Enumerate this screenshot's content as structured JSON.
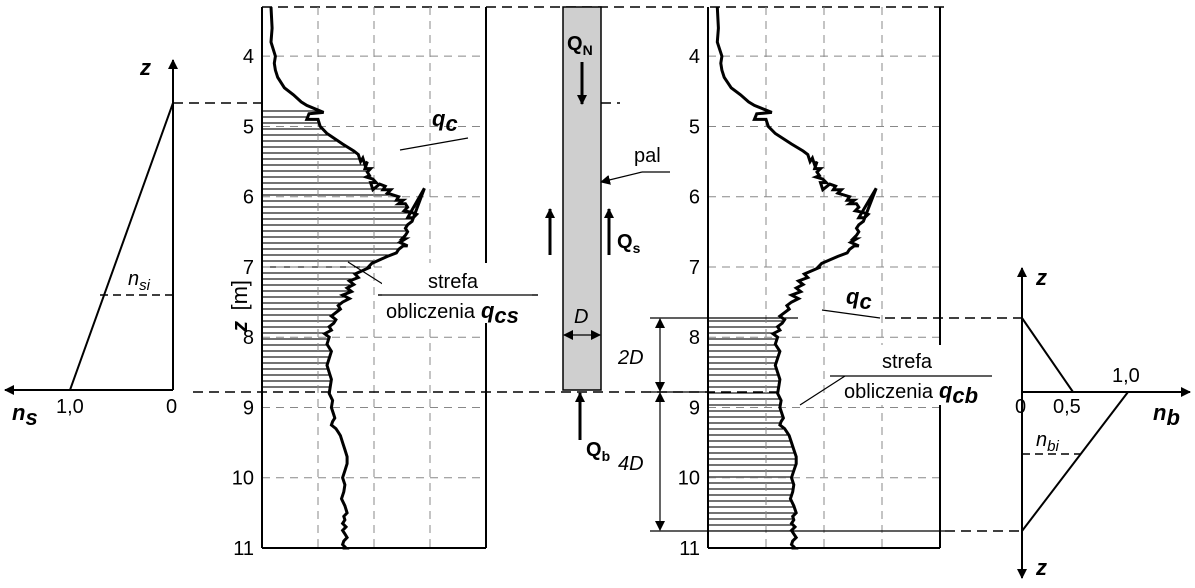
{
  "depth_ticks": [
    "4",
    "5",
    "6",
    "7",
    "8",
    "9",
    "10",
    "11"
  ],
  "depth_axis_label_var": "z",
  "depth_axis_label_unit": "[m]",
  "left_diagram": {
    "axis_z": "z",
    "axis_n": "n",
    "axis_n_sub": "s",
    "tick_one": "1,0",
    "tick_zero": "0",
    "nsi_base": "n",
    "nsi_sub": "si"
  },
  "left_chart": {
    "qc_label_base": "q",
    "qc_label_sub": "c",
    "zone_line1": "strefa",
    "zone_line2": "obliczenia",
    "zone_q_base": "q",
    "zone_q_sub": "cs"
  },
  "pile": {
    "qn_base": "Q",
    "qn_sub": "N",
    "pal_label": "pal",
    "qs_base": "Q",
    "qs_sub": "s",
    "d_label": "D",
    "qb_base": "Q",
    "qb_sub": "b"
  },
  "right_chart": {
    "qc_label_base": "q",
    "qc_label_sub": "c",
    "zone_line1": "strefa",
    "zone_line2": "obliczenia",
    "zone_q_base": "q",
    "zone_q_sub": "cb",
    "dim_2d": "2D",
    "dim_4d": "4D"
  },
  "right_diagram": {
    "axis_z_top": "z",
    "axis_z_bottom": "z",
    "axis_n": "n",
    "axis_n_sub": "b",
    "tick_zero": "0",
    "tick_half": "0,5",
    "tick_one": "1,0",
    "nbi_base": "n",
    "nbi_sub": "bi"
  },
  "chart_data": {
    "type": "line",
    "ylabel": "z [m]",
    "ylim": [
      3.3,
      11
    ],
    "series": [
      {
        "name": "qc",
        "x": [
          0.08,
          0.09,
          0.08,
          0.12,
          0.11,
          0.12,
          0.14,
          0.2,
          0.28,
          0.35,
          0.4,
          0.55,
          0.42,
          0.4,
          0.5,
          0.52,
          0.58,
          0.72,
          0.82,
          0.86,
          0.88,
          0.9,
          0.92,
          0.94,
          0.92,
          0.97,
          0.94,
          0.96,
          0.93,
          0.99,
          1.02,
          0.97,
          0.99,
          1.05,
          1.1,
          1.08,
          1.15,
          1.12,
          1.18,
          1.22,
          1.2,
          1.26,
          1.22,
          1.28,
          1.3,
          1.27,
          1.33,
          1.38,
          1.35,
          1.3,
          1.45,
          1.34,
          1.3,
          1.28,
          1.3,
          1.3,
          1.28,
          1.25,
          1.28,
          1.23,
          1.3,
          1.26,
          1.22,
          1.2,
          1.12,
          1.05,
          0.98,
          0.95,
          0.97,
          0.9,
          0.83,
          0.86,
          0.78,
          0.82,
          0.76,
          0.8,
          0.72,
          0.78,
          0.72,
          0.68,
          0.7,
          0.66,
          0.62,
          0.66,
          0.64,
          0.6,
          0.62,
          0.56,
          0.6,
          0.58,
          0.62,
          0.6,
          0.58,
          0.6,
          0.62,
          0.61,
          0.6,
          0.63,
          0.62,
          0.64,
          0.65,
          0.63,
          0.62,
          0.66,
          0.68,
          0.7,
          0.72,
          0.74,
          0.76,
          0.76,
          0.74,
          0.72,
          0.74,
          0.73,
          0.71,
          0.74,
          0.76,
          0.73,
          0.74,
          0.72,
          0.75,
          0.72,
          0.74,
          0.76,
          0.73,
          0.72,
          0.75,
          0.72
        ],
        "y": [
          3.3,
          3.6,
          3.8,
          4.0,
          4.1,
          4.2,
          4.3,
          4.45,
          4.55,
          4.65,
          4.7,
          4.8,
          4.82,
          4.9,
          4.9,
          5.0,
          5.1,
          5.25,
          5.35,
          5.4,
          5.5,
          5.45,
          5.55,
          5.5,
          5.6,
          5.6,
          5.65,
          5.7,
          5.72,
          5.75,
          5.8,
          5.8,
          5.9,
          5.82,
          5.85,
          5.9,
          5.9,
          5.95,
          5.98,
          6.0,
          6.05,
          6.05,
          6.1,
          6.1,
          6.15,
          6.2,
          6.22,
          6.25,
          6.3,
          6.3,
          5.88,
          6.35,
          6.4,
          6.45,
          6.5,
          6.5,
          6.55,
          6.6,
          6.6,
          6.65,
          6.7,
          6.7,
          6.75,
          6.8,
          6.85,
          6.9,
          6.95,
          7.0,
          7.0,
          7.05,
          7.1,
          7.15,
          7.2,
          7.25,
          7.3,
          7.35,
          7.4,
          7.45,
          7.5,
          7.55,
          7.6,
          7.65,
          7.7,
          7.75,
          7.8,
          7.85,
          7.9,
          7.95,
          8.0,
          8.1,
          8.2,
          8.3,
          8.4,
          8.5,
          8.6,
          8.7,
          8.8,
          8.9,
          9.0,
          9.1,
          9.15,
          9.2,
          9.25,
          9.3,
          9.35,
          9.4,
          9.5,
          9.6,
          9.7,
          9.8,
          9.9,
          10.0,
          10.1,
          10.2,
          10.3,
          10.4,
          10.5,
          10.55,
          10.6,
          10.65,
          10.7,
          10.75,
          10.8,
          10.85,
          10.9,
          10.95,
          11.0,
          11.0
        ]
      }
    ]
  }
}
